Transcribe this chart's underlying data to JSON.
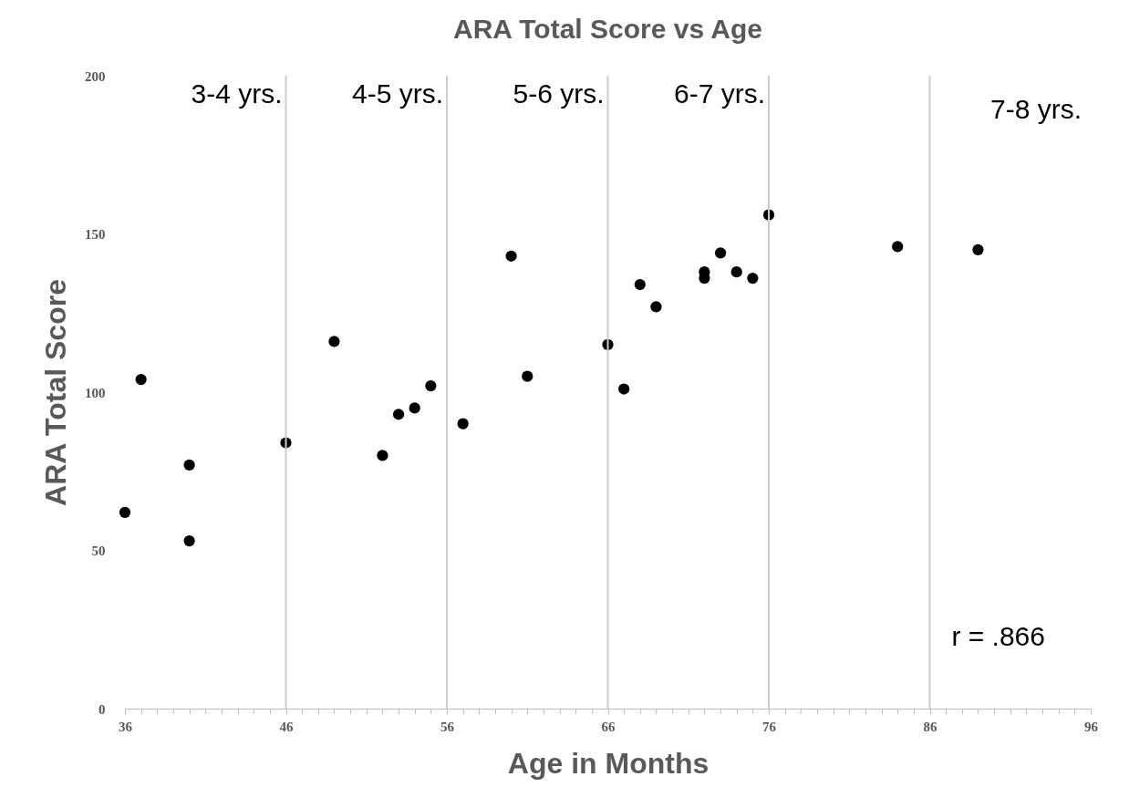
{
  "chart_data": {
    "type": "scatter",
    "title": "ARA Total Score vs Age",
    "xlabel": "Age in Months",
    "ylabel": "ARA Total Score",
    "x": [
      36,
      37,
      40,
      40,
      46,
      49,
      52,
      53,
      54,
      55,
      57,
      60,
      61,
      66,
      67,
      68,
      69,
      72,
      72,
      73,
      74,
      75,
      76,
      84,
      89
    ],
    "series": [
      {
        "color": "#000000",
        "values": [
          62,
          104,
          77,
          53,
          84,
          116,
          80,
          93,
          95,
          102,
          90,
          143,
          105,
          115,
          101,
          134,
          127,
          138,
          136,
          144,
          138,
          136,
          156,
          146,
          145
        ]
      }
    ],
    "marker": "circle",
    "grid": false,
    "xlim": [
      36,
      96
    ],
    "ylim": [
      0,
      200
    ],
    "xticks": [
      36,
      {
        "value": 37,
        "label": null
      },
      {
        "value": 38,
        "label": null
      },
      {
        "value": 39,
        "label": null
      },
      {
        "value": 40,
        "label": null
      },
      {
        "value": 41,
        "label": null
      },
      {
        "value": 42,
        "label": null
      },
      {
        "value": 43,
        "label": null
      },
      {
        "value": 44,
        "label": null
      },
      {
        "value": 45,
        "label": null
      },
      46,
      {
        "value": 47,
        "label": null
      },
      {
        "value": 48,
        "label": null
      },
      {
        "value": 49,
        "label": null
      },
      {
        "value": 50,
        "label": null
      },
      {
        "value": 51,
        "label": null
      },
      {
        "value": 52,
        "label": null
      },
      {
        "value": 53,
        "label": null
      },
      {
        "value": 54,
        "label": null
      },
      {
        "value": 55,
        "label": null
      },
      56,
      {
        "value": 57,
        "label": null
      },
      {
        "value": 58,
        "label": null
      },
      {
        "value": 59,
        "label": null
      },
      {
        "value": 60,
        "label": null
      },
      {
        "value": 61,
        "label": null
      },
      {
        "value": 62,
        "label": null
      },
      {
        "value": 63,
        "label": null
      },
      {
        "value": 64,
        "label": null
      },
      {
        "value": 65,
        "label": null
      },
      66,
      {
        "value": 67,
        "label": null
      },
      {
        "value": 68,
        "label": null
      },
      {
        "value": 69,
        "label": null
      },
      {
        "value": 70,
        "label": null
      },
      {
        "value": 71,
        "label": null
      },
      {
        "value": 72,
        "label": null
      },
      {
        "value": 73,
        "label": null
      },
      {
        "value": 74,
        "label": null
      },
      {
        "value": 75,
        "label": null
      },
      76,
      {
        "value": 77,
        "label": null
      },
      {
        "value": 78,
        "label": null
      },
      {
        "value": 79,
        "label": null
      },
      {
        "value": 80,
        "label": null
      },
      {
        "value": 81,
        "label": null
      },
      {
        "value": 82,
        "label": null
      },
      {
        "value": 83,
        "label": null
      },
      {
        "value": 84,
        "label": null
      },
      {
        "value": 85,
        "label": null
      },
      86,
      {
        "value": 87,
        "label": null
      },
      {
        "value": 88,
        "label": null
      },
      {
        "value": 89,
        "label": null
      },
      {
        "value": 90,
        "label": null
      },
      {
        "value": 91,
        "label": null
      },
      {
        "value": 92,
        "label": null
      },
      {
        "value": 93,
        "label": null
      },
      {
        "value": 94,
        "label": null
      },
      {
        "value": 95,
        "label": null
      },
      96
    ],
    "yticks": [
      0,
      50,
      100,
      150,
      200
    ],
    "ref_lines": [
      {
        "axis": "x",
        "value": 46,
        "color": "#cccccc"
      },
      {
        "axis": "x",
        "value": 56,
        "color": "#cccccc"
      },
      {
        "axis": "x",
        "value": 66,
        "color": "#cccccc"
      },
      {
        "axis": "x",
        "value": 76,
        "color": "#cccccc"
      },
      {
        "axis": "x",
        "value": 86,
        "color": "#cccccc"
      }
    ],
    "annotations": [
      {
        "text": "3-4 yrs.",
        "x": 46,
        "y": 200
      },
      {
        "text": "4-5 yrs.",
        "x": 56,
        "y": 200
      },
      {
        "text": "5-6 yrs.",
        "x": 66,
        "y": 200
      },
      {
        "text": "6-7 yrs.",
        "x": 76,
        "y": 200
      },
      "7-8 yrs.",
      "r = .866"
    ]
  }
}
